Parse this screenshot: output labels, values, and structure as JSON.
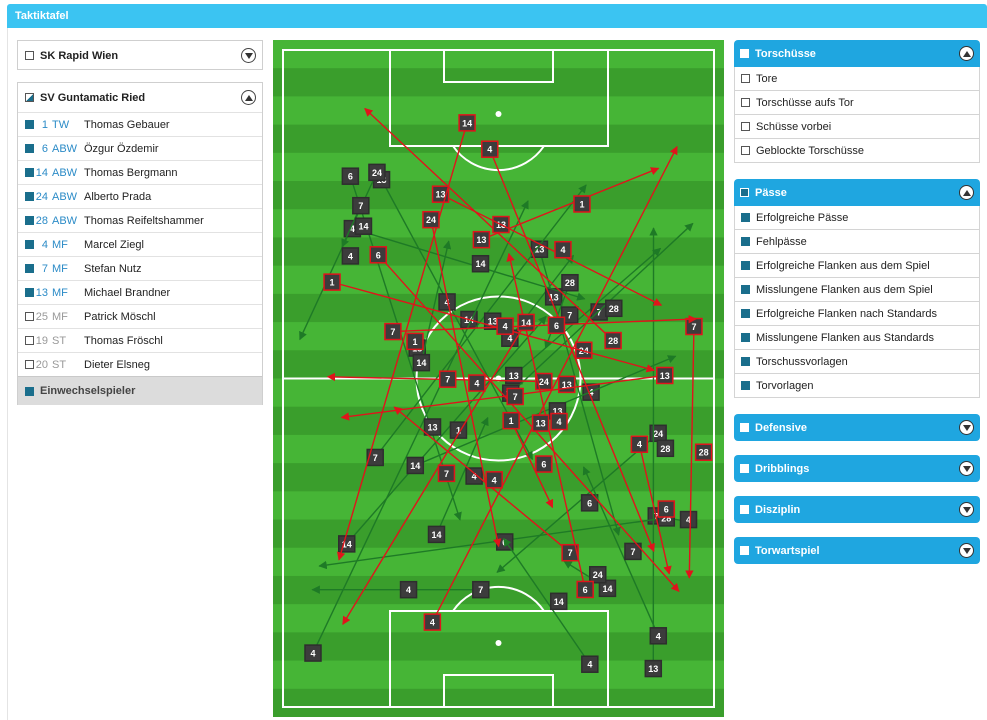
{
  "window": {
    "title": "Taktiktafel"
  },
  "teams": {
    "rapid": {
      "name": "SK Rapid Wien"
    },
    "ried": {
      "name": "SV Guntamatic Ried",
      "players": [
        {
          "num": "1",
          "pos": "TW",
          "name": "Thomas Gebauer"
        },
        {
          "num": "6",
          "pos": "ABW",
          "name": "Özgur Özdemir"
        },
        {
          "num": "14",
          "pos": "ABW",
          "name": "Thomas Bergmann"
        },
        {
          "num": "24",
          "pos": "ABW",
          "name": "Alberto Prada"
        },
        {
          "num": "28",
          "pos": "ABW",
          "name": "Thomas Reifeltshammer"
        },
        {
          "num": "4",
          "pos": "MF",
          "name": "Marcel Ziegl"
        },
        {
          "num": "7",
          "pos": "MF",
          "name": "Stefan Nutz"
        },
        {
          "num": "13",
          "pos": "MF",
          "name": "Michael Brandner"
        },
        {
          "num": "25",
          "pos": "MF",
          "name": "Patrick Möschl"
        },
        {
          "num": "19",
          "pos": "ST",
          "name": "Thomas Fröschl"
        },
        {
          "num": "20",
          "pos": "ST",
          "name": "Dieter Elsneg"
        }
      ],
      "subs_label": "Einwechselspieler"
    }
  },
  "panels": {
    "torschuesse": {
      "title": "Torschüsse",
      "items": [
        "Tore",
        "Torschüsse aufs Tor",
        "Schüsse vorbei",
        "Geblockte Torschüsse"
      ]
    },
    "paesse": {
      "title": "Pässe",
      "items": [
        "Erfolgreiche Pässe",
        "Fehlpässe",
        "Erfolgreiche Flanken aus dem Spiel",
        "Misslungene Flanken aus dem Spiel",
        "Erfolgreiche Flanken nach Standards",
        "Misslungene Flanken aus Standards",
        "Torschussvorlagen",
        "Torvorlagen"
      ]
    },
    "defensive": {
      "title": "Defensive"
    },
    "dribblings": {
      "title": "Dribblings"
    },
    "disziplin": {
      "title": "Disziplin"
    },
    "torwartspiel": {
      "title": "Torwartspiel"
    }
  },
  "colors": {
    "pitch_light": "#46b536",
    "pitch_dark": "#3a9e2c",
    "success_pass": "#1e7a26",
    "failed_pass": "#e0141b",
    "marker_bg": "#3c3c3c"
  },
  "passes": {
    "success": [
      [
        "14",
        "1",
        "4"
      ],
      [
        "7",
        "4",
        "14"
      ],
      [
        "13",
        "4",
        "7"
      ],
      [
        "4",
        "13",
        "14"
      ],
      [
        "28",
        "6",
        "13"
      ],
      [
        "13",
        "14",
        "28"
      ],
      [
        "24",
        "6",
        "13"
      ],
      [
        "6",
        "13",
        "4"
      ],
      [
        "13",
        "28",
        "6"
      ],
      [
        "4",
        "7",
        "13"
      ],
      [
        "7",
        "13",
        "4"
      ],
      [
        "14",
        "4",
        "7"
      ],
      [
        "24",
        "4",
        "6"
      ],
      [
        "14",
        "24",
        "4"
      ],
      [
        "4",
        "14",
        "7"
      ],
      [
        "7",
        "4",
        "13"
      ],
      [
        "13",
        "7",
        "14"
      ],
      [
        "4",
        "13",
        "28"
      ],
      [
        "14",
        "4",
        "7"
      ],
      [
        "7",
        "14",
        "4"
      ],
      [
        "28",
        "7",
        "13"
      ],
      [
        "13",
        "28",
        "4"
      ],
      [
        "14",
        "13",
        "7"
      ],
      [
        "4",
        "14",
        "28"
      ]
    ],
    "failed": [
      [
        "7",
        "4",
        "13"
      ],
      [
        "24",
        "7",
        "4"
      ],
      [
        "4",
        "6",
        "1"
      ],
      [
        "13",
        "1",
        "28"
      ],
      [
        "28",
        "13",
        "4"
      ],
      [
        "6",
        "4",
        "7"
      ],
      [
        "1",
        "6",
        "13"
      ],
      [
        "4",
        "24",
        "1"
      ],
      [
        "7",
        "28",
        "6"
      ],
      [
        "14",
        "7",
        "4"
      ],
      [
        "13",
        "4",
        "14"
      ],
      [
        "4",
        "13",
        "7"
      ],
      [
        "7",
        "6",
        "24"
      ],
      [
        "1",
        "4",
        "13"
      ],
      [
        "14",
        "1",
        "4"
      ],
      [
        "6",
        "13",
        "7"
      ],
      [
        "24",
        "4",
        "1"
      ],
      [
        "13",
        "7",
        "28"
      ]
    ]
  }
}
